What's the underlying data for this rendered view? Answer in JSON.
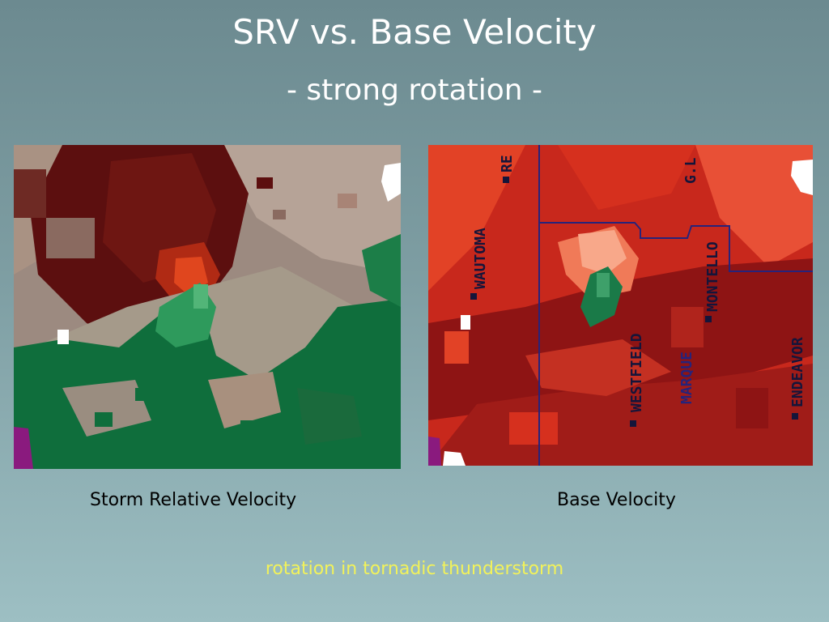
{
  "slide": {
    "title": "SRV vs. Base Velocity",
    "subtitle": "- strong rotation -",
    "footnote": "rotation in tornadic thunderstorm"
  },
  "panels": {
    "srv": {
      "caption": "Storm Relative Velocity"
    },
    "base": {
      "caption": "Base Velocity",
      "towns": [
        "WAUTOMA",
        "RE",
        "G.L",
        "MONTELLO",
        "WESTFIELD",
        "MARQUE",
        "ENDEAVOR"
      ]
    }
  },
  "colors": {
    "text_title": "#ffffff",
    "text_footnote": "#f2f25a",
    "srv_inbound_dark": "#5c0f0f",
    "srv_neutral": "#a08f84",
    "srv_outbound": "#0f6e3c",
    "base_outbound": "#d8321e",
    "base_dark": "#8e1414",
    "county_line": "#27237a"
  }
}
